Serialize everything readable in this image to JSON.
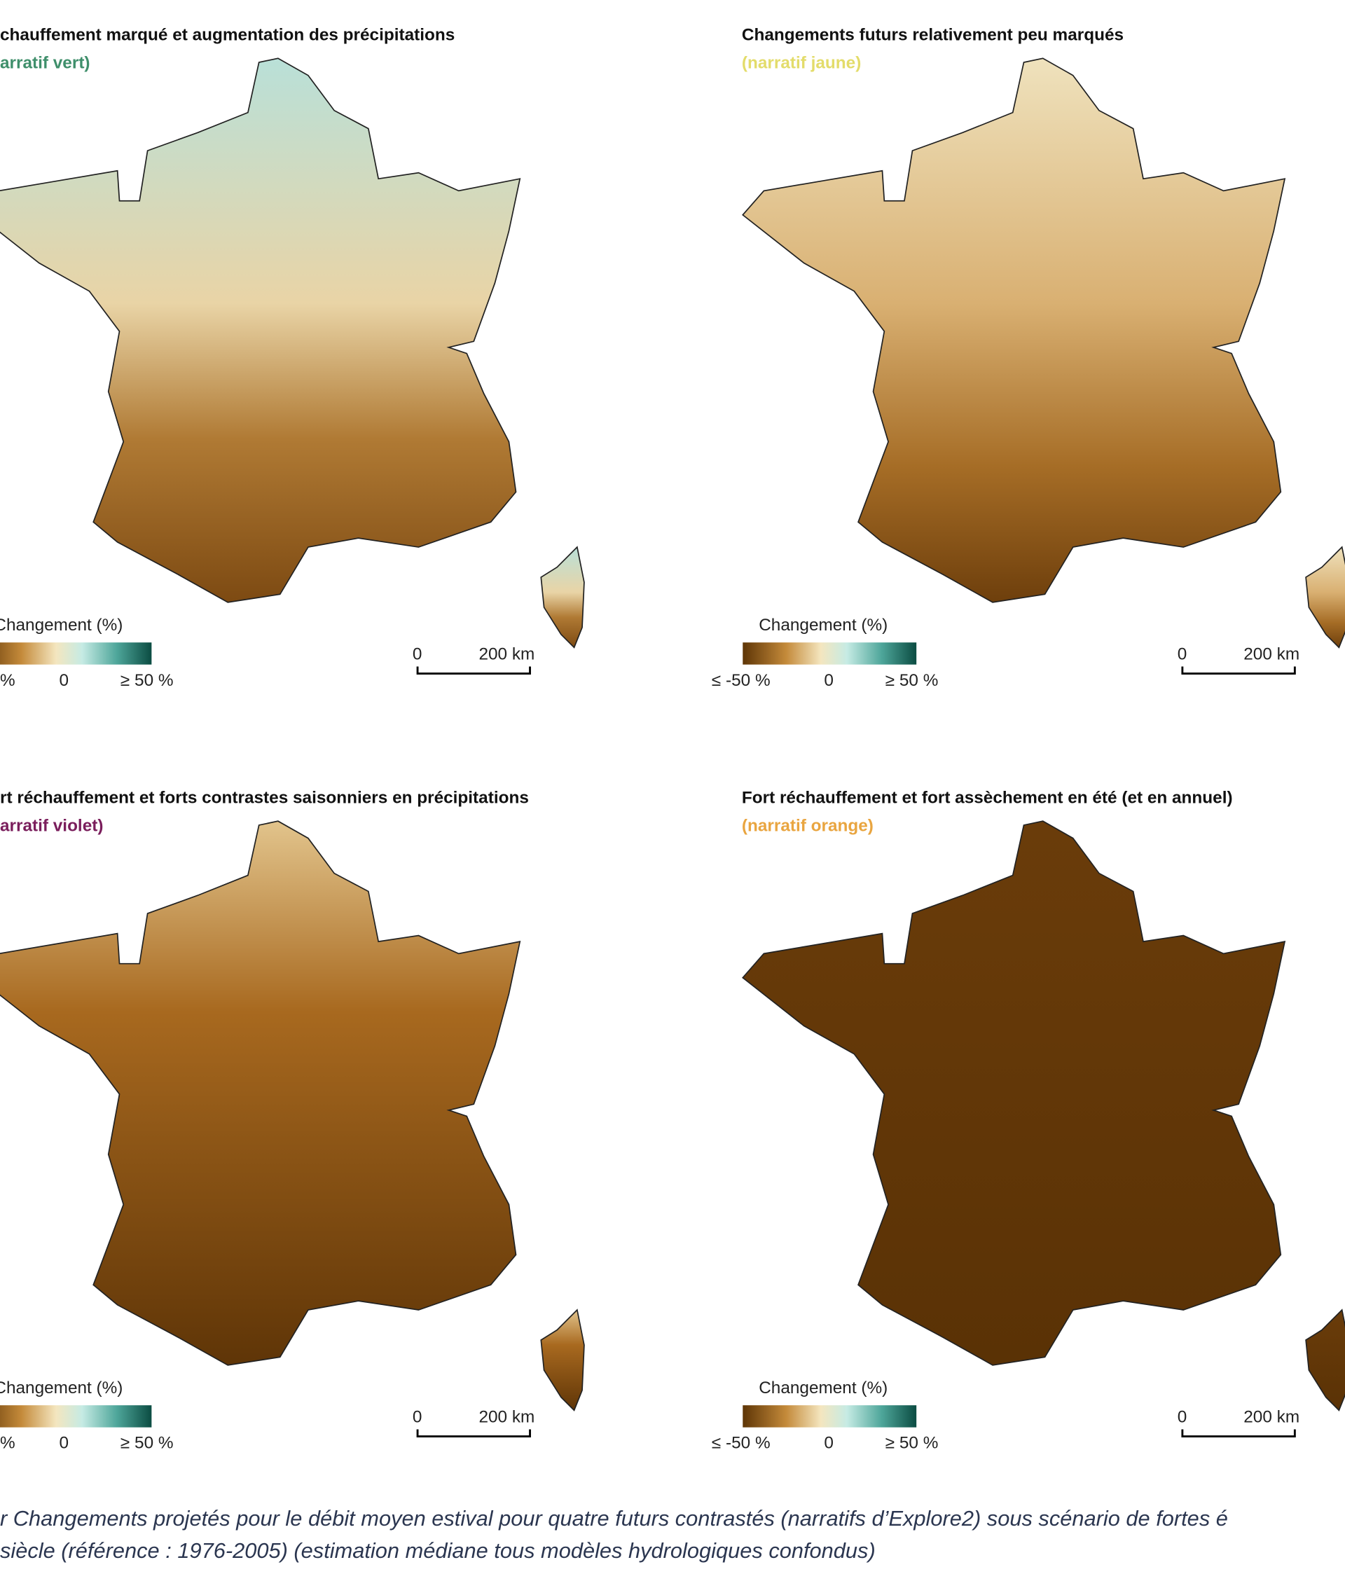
{
  "panels": [
    {
      "title": "chauffement marqué et augmentation des précipitations",
      "narrative": "arratif vert)",
      "narrative_color": "#3f8f6b",
      "legend": {
        "title": "Changement (%)",
        "labels": [
          "%",
          "0",
          "≥ 50 %"
        ]
      },
      "scale": [
        "0",
        "200 km"
      ]
    },
    {
      "title": "Changements futurs relativement peu marqués",
      "narrative": "(narratif jaune)",
      "narrative_color": "#e3dc6a",
      "legend": {
        "title": "Changement (%)",
        "labels": [
          "≤ -50 %",
          "0",
          "≥ 50 %"
        ]
      },
      "scale": [
        "0",
        "200 km"
      ]
    },
    {
      "title": "rt réchauffement et forts contrastes saisonniers en précipitations",
      "narrative": "arratif violet)",
      "narrative_color": "#7a1e5c",
      "legend": {
        "title": "Changement (%)",
        "labels": [
          "%",
          "0",
          "≥ 50 %"
        ]
      },
      "scale": [
        "0",
        "200 km"
      ]
    },
    {
      "title": "Fort réchauffement et fort assèchement en été (et en annuel)",
      "narrative": "(narratif orange)",
      "narrative_color": "#e9a540",
      "legend": {
        "title": "Changement (%)",
        "labels": [
          "≤ -50 %",
          "0",
          "≥ 50 %"
        ]
      },
      "scale": [
        "0",
        "200 km"
      ]
    }
  ],
  "caption": [
    "r Changements projetés pour le débit moyen estival pour quatre futurs contrastés (narratifs d’Explore2) sous scénario de fortes é",
    " siècle (référence : 1976-2005) (estimation médiane tous modèles hydrologiques confondus)"
  ]
}
